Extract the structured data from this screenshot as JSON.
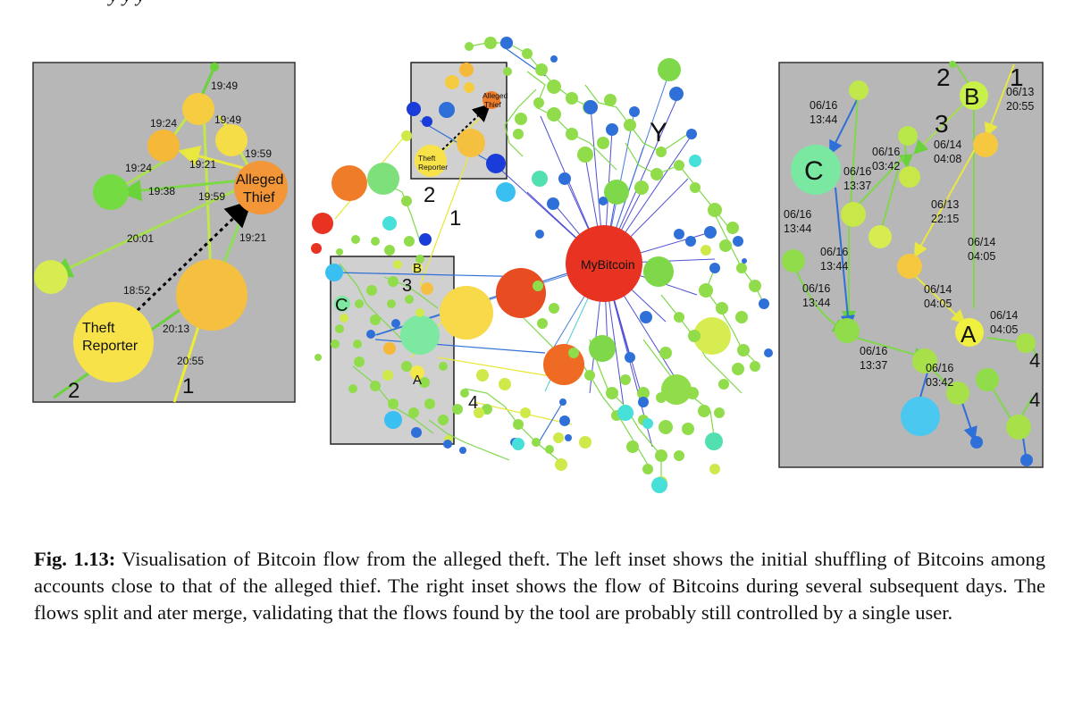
{
  "top_fragment": "y   y   y",
  "figure": {
    "left_inset": {
      "node_labels": {
        "thief": [
          "Alleged",
          "Thief"
        ],
        "reporter": [
          "Theft",
          "Reporter"
        ]
      },
      "edge_labels": [
        "19:49",
        "19:24",
        "19:49",
        "19:59",
        "19:21",
        "19:24",
        "19:38",
        "19:59",
        "20:01",
        "19:21",
        "18:52",
        "20:13",
        "20:55"
      ],
      "markers": [
        "1",
        "2"
      ]
    },
    "center": {
      "hub_label": "MyBitcoin",
      "thief_label": [
        "Alleged",
        "Thief"
      ],
      "reporter_label": [
        "Theft",
        "Reporter"
      ],
      "markers": [
        "Y",
        "1",
        "2",
        "3",
        "4",
        "A",
        "B",
        "C"
      ]
    },
    "right_inset": {
      "markers": [
        "2",
        "1",
        "B",
        "3",
        "C",
        "A",
        "4",
        "4"
      ],
      "edge_labels": [
        [
          "06/13",
          "20:55"
        ],
        [
          "06/16",
          "13:44"
        ],
        [
          "06/16",
          "03:42"
        ],
        [
          "06/14",
          "04:08"
        ],
        [
          "06/16",
          "13:37"
        ],
        [
          "06/13",
          "22:15"
        ],
        [
          "06/16",
          "13:44"
        ],
        [
          "06/14",
          "04:05"
        ],
        [
          "06/16",
          "13:44"
        ],
        [
          "06/16",
          "13:44"
        ],
        [
          "06/14",
          "04:05"
        ],
        [
          "06/14",
          "04:05"
        ],
        [
          "06/16",
          "13:37"
        ],
        [
          "06/16",
          "03:42"
        ]
      ]
    }
  },
  "caption": {
    "label": "Fig. 1.13:",
    "text": "Visualisation of Bitcoin flow from the alleged theft. The left inset shows the initial shuffling of Bitcoins among accounts close to that of the alleged thief. The right inset shows the flow of Bitcoins during several subsequent days. The flows split and ater merge, validating that the flows found by the tool are probably still controlled by a single user."
  }
}
